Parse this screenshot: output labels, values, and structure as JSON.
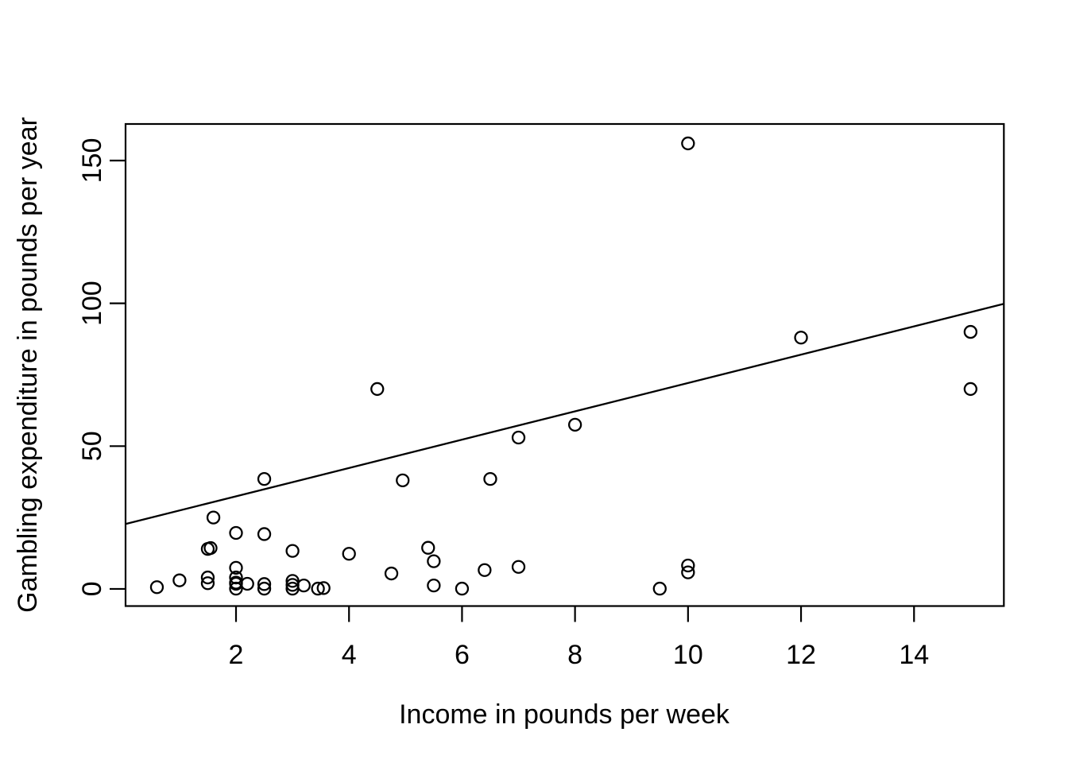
{
  "figure": {
    "background": "#ffffff",
    "foreground": "#000000"
  },
  "chart_data": {
    "type": "scatter",
    "title": "",
    "xlabel": "Income in pounds per week",
    "ylabel": "Gambling expenditure in pounds per year",
    "xlim": [
      0.045,
      15.59
    ],
    "ylim": [
      -6,
      162.8
    ],
    "x_ticks": [
      2,
      4,
      6,
      8,
      10,
      12,
      14
    ],
    "y_ticks": [
      0,
      50,
      100,
      150
    ],
    "grid": false,
    "legend": null,
    "marker": "open-circle",
    "point_color": "#000000",
    "line_color": "#000000",
    "points": [
      [
        0.6,
        0.6
      ],
      [
        1.0,
        3.0
      ],
      [
        1.5,
        14.0
      ],
      [
        1.55,
        14.3
      ],
      [
        1.6,
        25.0
      ],
      [
        1.5,
        4.0
      ],
      [
        1.5,
        2.0
      ],
      [
        2.0,
        19.6
      ],
      [
        2.0,
        7.4
      ],
      [
        2.0,
        4.0
      ],
      [
        2.0,
        2.2
      ],
      [
        2.0,
        1.8
      ],
      [
        2.0,
        0.1
      ],
      [
        2.2,
        1.8
      ],
      [
        2.5,
        38.5
      ],
      [
        2.5,
        19.2
      ],
      [
        2.5,
        1.7
      ],
      [
        2.5,
        0.1
      ],
      [
        3.0,
        13.3
      ],
      [
        3.0,
        2.8
      ],
      [
        3.0,
        1.4
      ],
      [
        3.0,
        0.1
      ],
      [
        3.2,
        1.2
      ],
      [
        3.45,
        0.1
      ],
      [
        3.55,
        0.3
      ],
      [
        4.0,
        12.3
      ],
      [
        4.5,
        70.0
      ],
      [
        4.75,
        5.4
      ],
      [
        4.95,
        38.0
      ],
      [
        5.4,
        14.4
      ],
      [
        5.5,
        9.7
      ],
      [
        5.5,
        1.2
      ],
      [
        6.0,
        0.1
      ],
      [
        6.4,
        6.6
      ],
      [
        6.5,
        38.5
      ],
      [
        7.0,
        53.0
      ],
      [
        7.0,
        7.7
      ],
      [
        8.0,
        57.5
      ],
      [
        9.5,
        0.1
      ],
      [
        10.0,
        156.0
      ],
      [
        10.0,
        8.2
      ],
      [
        10.0,
        5.8
      ],
      [
        12.0,
        88.0
      ],
      [
        15.0,
        90.0
      ],
      [
        15.0,
        70.0
      ]
    ],
    "regression_line": {
      "intercept": 22.5,
      "slope": 4.96
    }
  }
}
